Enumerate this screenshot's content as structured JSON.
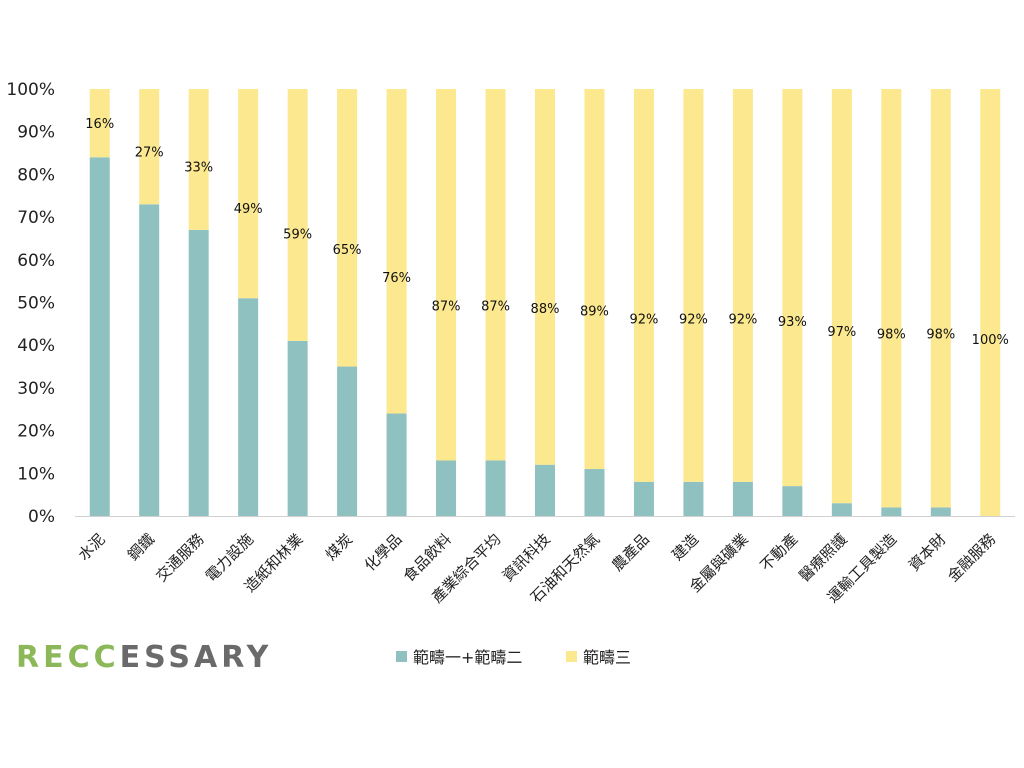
{
  "chart_data": {
    "type": "bar",
    "stacked": true,
    "orientation": "vertical",
    "categories": [
      "水泥",
      "鋼鐵",
      "交通服務",
      "電力設施",
      "造紙和林業",
      "煤炭",
      "化學品",
      "食品飲料",
      "產業綜合平均",
      "資訊科技",
      "石油和天然氣",
      "農產品",
      "建造",
      "金屬與礦業",
      "不動產",
      "醫療照護",
      "運輸工具製造",
      "資本財",
      "金融服務"
    ],
    "series": [
      {
        "name": "範疇一+範疇二",
        "color": "#8fc1c1",
        "values": [
          84,
          73,
          67,
          51,
          41,
          35,
          24,
          13,
          13,
          12,
          11,
          8,
          8,
          8,
          7,
          3,
          2,
          2,
          0
        ]
      },
      {
        "name": "範疇三",
        "color": "#fbe88f",
        "values": [
          16,
          27,
          33,
          49,
          59,
          65,
          76,
          87,
          87,
          88,
          89,
          92,
          92,
          92,
          93,
          97,
          98,
          98,
          100
        ]
      }
    ],
    "data_labels": [
      "16%",
      "27%",
      "33%",
      "49%",
      "59%",
      "65%",
      "76%",
      "87%",
      "87%",
      "88%",
      "89%",
      "92%",
      "92%",
      "92%",
      "93%",
      "97%",
      "98%",
      "98%",
      "100%"
    ],
    "highlight_label_index": 8,
    "highlight_color": "#e02020",
    "y_ticks": [
      "0%",
      "10%",
      "20%",
      "30%",
      "40%",
      "50%",
      "60%",
      "70%",
      "80%",
      "90%",
      "100%"
    ],
    "ylim": [
      0,
      100
    ],
    "grid": false,
    "legend_position": "bottom"
  },
  "logo": {
    "part1": "RECC",
    "part2": "ESSARY"
  }
}
